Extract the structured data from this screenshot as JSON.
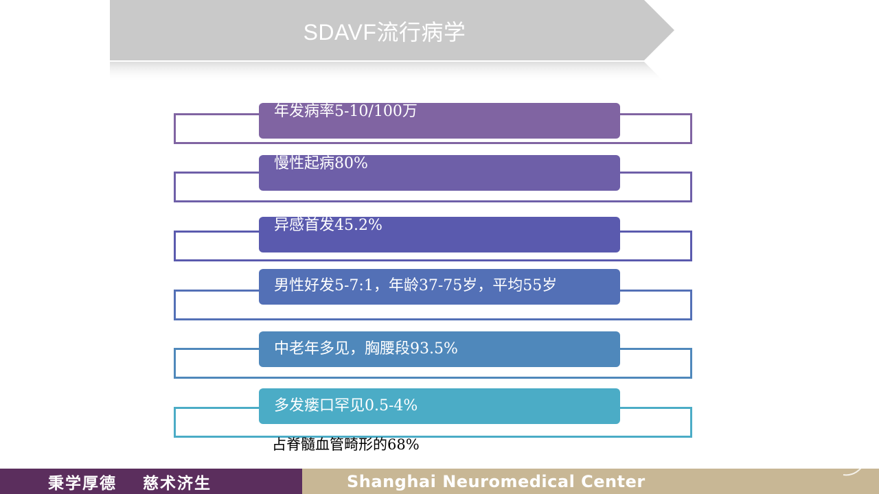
{
  "title": "SDAVF流行病学",
  "items": [
    {
      "text": "年发病率5-10/100万",
      "color": "#8064a2"
    },
    {
      "text": "慢性起病80%",
      "color": "#6e5fa8"
    },
    {
      "text": "异感首发45.2%",
      "color": "#5a5aae"
    },
    {
      "text": "男性好发5-7:1，年龄37-75岁，平均55岁",
      "color": "#5370b6"
    },
    {
      "text": "中老年多见，胸腰段93.5%",
      "color": "#4f88bb"
    },
    {
      "text": "多发瘘口罕见0.5-4%",
      "color": "#4bacc6"
    }
  ],
  "extra_line": "占脊髓血管畸形的68%",
  "footer": {
    "motto_1": "秉学厚德",
    "motto_2": "慈术济生",
    "center_name": "Shanghai Neuromedical Center",
    "left_color": "#5b2e5d",
    "right_color": "#c8b795"
  }
}
